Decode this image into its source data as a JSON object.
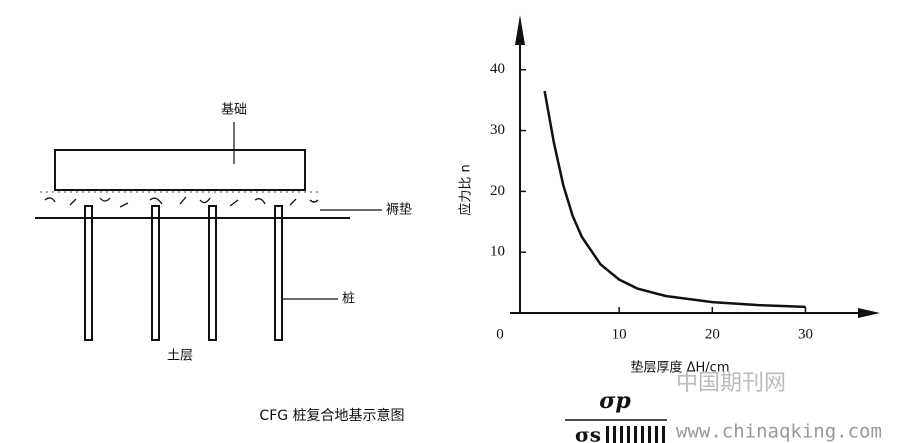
{
  "diagram": {
    "labels": {
      "foundation": "基础",
      "cushion": "褥垫",
      "pile": "桩",
      "soil": "土层"
    },
    "caption": "CFG 桩复合地基示意图"
  },
  "chart_data": {
    "type": "line",
    "x_label": "垫层厚度 ΔH/cm",
    "y_label": "应力比 n",
    "x": [
      2,
      3,
      4,
      5,
      6,
      8,
      10,
      12,
      15,
      20,
      25,
      30
    ],
    "values": [
      36.5,
      28,
      21,
      16,
      12.5,
      8,
      5.5,
      4,
      2.8,
      1.8,
      1.3,
      1
    ],
    "color": "#111",
    "xlim": [
      0,
      38
    ],
    "ylim": [
      0,
      49
    ],
    "xticks": [
      0,
      10,
      20,
      30
    ],
    "yticks": [
      10,
      20,
      30,
      40
    ]
  },
  "formula": {
    "numerator": "σp",
    "denominator": "σs"
  },
  "watermark": {
    "name": "中国期刊网",
    "url": "www.chinaqking.com"
  }
}
